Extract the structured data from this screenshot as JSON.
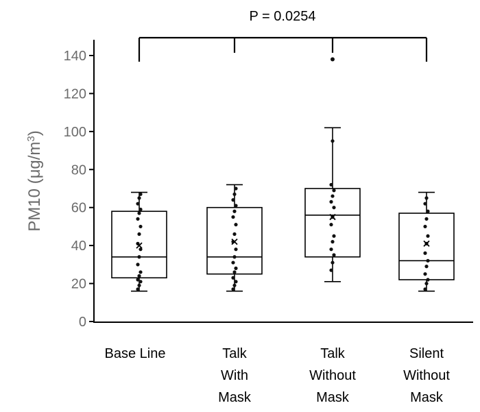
{
  "chart_data": {
    "type": "box",
    "categories": [
      "Base Line",
      "Talk With Mask",
      "Talk Without Mask",
      "Silent Without Mask"
    ],
    "category_lines": [
      [
        "Base Line"
      ],
      [
        "Talk",
        "With",
        "Mask"
      ],
      [
        "Talk",
        "Without",
        "Mask"
      ],
      [
        "Silent",
        "Without",
        "Mask"
      ]
    ],
    "ylabel": "PM10 (μg/m³)",
    "ylabel_parts": {
      "main": "PM10 (μg/m",
      "sup": "3",
      "close": ")"
    },
    "ylim": [
      0,
      150
    ],
    "yticks": [
      0,
      20,
      40,
      60,
      80,
      100,
      120,
      140
    ],
    "annotation": "P = 0.0254",
    "boxes": [
      {
        "min": 16,
        "q1": 23,
        "median": 34,
        "q3": 58,
        "max": 68,
        "mean": 40,
        "points": [
          17,
          19,
          21,
          22,
          24,
          26,
          30,
          34,
          38,
          41,
          46,
          50,
          54,
          57,
          59,
          62,
          65,
          67
        ]
      },
      {
        "min": 16,
        "q1": 25,
        "median": 34,
        "q3": 60,
        "max": 72,
        "mean": 42,
        "points": [
          17,
          19,
          21,
          23,
          26,
          28,
          31,
          34,
          38,
          42,
          46,
          51,
          55,
          58,
          61,
          64,
          67,
          70
        ]
      },
      {
        "min": 21,
        "q1": 34,
        "median": 56,
        "q3": 70,
        "max": 102,
        "mean": 55,
        "outliers": [
          138
        ],
        "points": [
          27,
          31,
          35,
          38,
          42,
          45,
          51,
          55,
          60,
          63,
          66,
          69,
          72,
          95
        ]
      },
      {
        "min": 16,
        "q1": 22,
        "median": 32,
        "q3": 57,
        "max": 68,
        "mean": 41,
        "points": [
          17,
          20,
          22,
          25,
          29,
          32,
          36,
          41,
          45,
          50,
          54,
          58,
          62,
          65
        ]
      }
    ]
  }
}
